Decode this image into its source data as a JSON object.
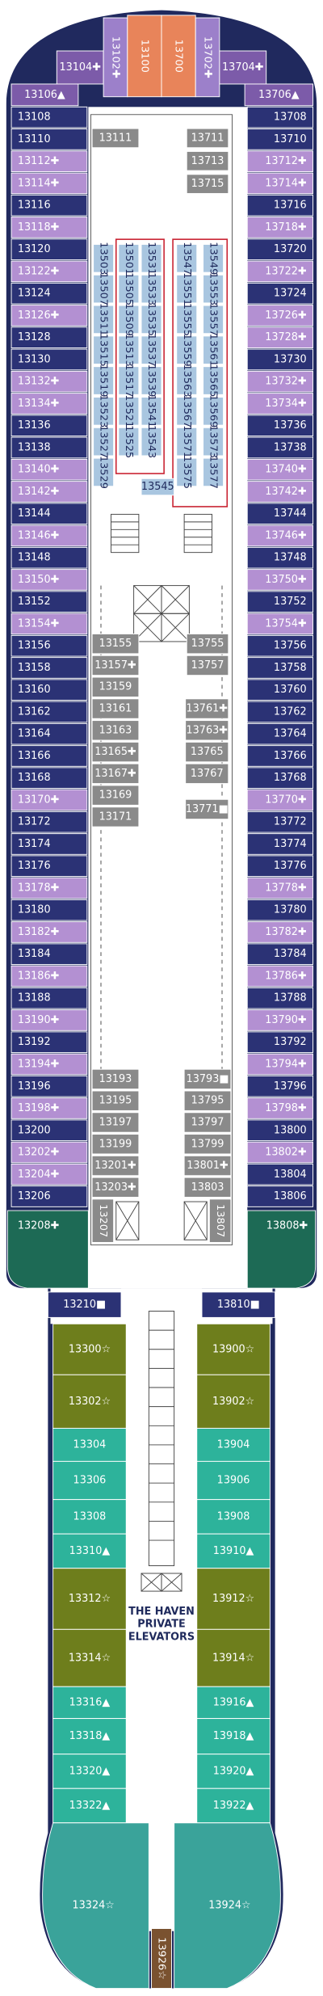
{
  "bow": [
    {
      "label": "13104✚",
      "color": "#7c5ba9"
    },
    {
      "label": "13102✚",
      "color": "#9c80ca"
    },
    {
      "label": "13100",
      "color": "#e8845a"
    },
    {
      "label": "13700",
      "color": "#e8845a"
    },
    {
      "label": "13702✚",
      "color": "#9c80ca"
    },
    {
      "label": "13704✚",
      "color": "#7c5ba9"
    }
  ],
  "bow_sides": [
    {
      "label": "13106▲",
      "color": "#7c5ba9"
    },
    {
      "label": "13706▲",
      "color": "#7c5ba9"
    }
  ],
  "port_cabins": [
    {
      "label": "13108",
      "color": "#2b3275"
    },
    {
      "label": "13110",
      "color": "#2b3275"
    },
    {
      "label": "13112✚",
      "color": "#b390d2"
    },
    {
      "label": "13114✚",
      "color": "#b390d2"
    },
    {
      "label": "13116",
      "color": "#2b3275"
    },
    {
      "label": "13118✚",
      "color": "#b390d2"
    },
    {
      "label": "13120",
      "color": "#2b3275"
    },
    {
      "label": "13122✚",
      "color": "#b390d2"
    },
    {
      "label": "13124",
      "color": "#2b3275"
    },
    {
      "label": "13126✚",
      "color": "#b390d2"
    },
    {
      "label": "13128",
      "color": "#2b3275"
    },
    {
      "label": "13130",
      "color": "#2b3275"
    },
    {
      "label": "13132✚",
      "color": "#b390d2"
    },
    {
      "label": "13134✚",
      "color": "#b390d2"
    },
    {
      "label": "13136",
      "color": "#2b3275"
    },
    {
      "label": "13138",
      "color": "#2b3275"
    },
    {
      "label": "13140✚",
      "color": "#b390d2"
    },
    {
      "label": "13142✚",
      "color": "#b390d2"
    },
    {
      "label": "13144",
      "color": "#2b3275"
    },
    {
      "label": "13146✚",
      "color": "#b390d2"
    },
    {
      "label": "13148",
      "color": "#2b3275"
    },
    {
      "label": "13150✚",
      "color": "#b390d2"
    },
    {
      "label": "13152",
      "color": "#2b3275"
    },
    {
      "label": "13154✚",
      "color": "#b390d2"
    },
    {
      "label": "13156",
      "color": "#2b3275"
    },
    {
      "label": "13158",
      "color": "#2b3275"
    },
    {
      "label": "13160",
      "color": "#2b3275"
    },
    {
      "label": "13162",
      "color": "#2b3275"
    },
    {
      "label": "13164",
      "color": "#2b3275"
    },
    {
      "label": "13166",
      "color": "#2b3275"
    },
    {
      "label": "13168",
      "color": "#2b3275"
    },
    {
      "label": "13170✚",
      "color": "#b390d2"
    },
    {
      "label": "13172",
      "color": "#2b3275"
    },
    {
      "label": "13174",
      "color": "#2b3275"
    },
    {
      "label": "13176",
      "color": "#2b3275"
    },
    {
      "label": "13178✚",
      "color": "#b390d2"
    },
    {
      "label": "13180",
      "color": "#2b3275"
    },
    {
      "label": "13182✚",
      "color": "#b390d2"
    },
    {
      "label": "13184",
      "color": "#2b3275"
    },
    {
      "label": "13186✚",
      "color": "#b390d2"
    },
    {
      "label": "13188",
      "color": "#2b3275"
    },
    {
      "label": "13190✚",
      "color": "#b390d2"
    },
    {
      "label": "13192",
      "color": "#2b3275"
    },
    {
      "label": "13194✚",
      "color": "#b390d2"
    },
    {
      "label": "13196",
      "color": "#2b3275"
    },
    {
      "label": "13198✚",
      "color": "#b390d2"
    },
    {
      "label": "13200",
      "color": "#2b3275"
    },
    {
      "label": "13202✚",
      "color": "#b390d2"
    },
    {
      "label": "13204✚",
      "color": "#b390d2"
    },
    {
      "label": "13206",
      "color": "#2b3275"
    }
  ],
  "starboard_cabins": [
    {
      "label": "13708",
      "color": "#2b3275"
    },
    {
      "label": "13710",
      "color": "#2b3275"
    },
    {
      "label": "13712✚",
      "color": "#b390d2"
    },
    {
      "label": "13714✚",
      "color": "#b390d2"
    },
    {
      "label": "13716",
      "color": "#2b3275"
    },
    {
      "label": "13718✚",
      "color": "#b390d2"
    },
    {
      "label": "13720",
      "color": "#2b3275"
    },
    {
      "label": "13722✚",
      "color": "#b390d2"
    },
    {
      "label": "13724",
      "color": "#2b3275"
    },
    {
      "label": "13726✚",
      "color": "#b390d2"
    },
    {
      "label": "13728✚",
      "color": "#b390d2"
    },
    {
      "label": "13730",
      "color": "#2b3275"
    },
    {
      "label": "13732✚",
      "color": "#b390d2"
    },
    {
      "label": "13734✚",
      "color": "#b390d2"
    },
    {
      "label": "13736",
      "color": "#2b3275"
    },
    {
      "label": "13738",
      "color": "#2b3275"
    },
    {
      "label": "13740✚",
      "color": "#b390d2"
    },
    {
      "label": "13742✚",
      "color": "#b390d2"
    },
    {
      "label": "13744",
      "color": "#2b3275"
    },
    {
      "label": "13746✚",
      "color": "#b390d2"
    },
    {
      "label": "13748",
      "color": "#2b3275"
    },
    {
      "label": "13750✚",
      "color": "#b390d2"
    },
    {
      "label": "13752",
      "color": "#2b3275"
    },
    {
      "label": "13754✚",
      "color": "#b390d2"
    },
    {
      "label": "13756",
      "color": "#2b3275"
    },
    {
      "label": "13758",
      "color": "#2b3275"
    },
    {
      "label": "13760",
      "color": "#2b3275"
    },
    {
      "label": "13762",
      "color": "#2b3275"
    },
    {
      "label": "13764",
      "color": "#2b3275"
    },
    {
      "label": "13766",
      "color": "#2b3275"
    },
    {
      "label": "13768",
      "color": "#2b3275"
    },
    {
      "label": "13770✚",
      "color": "#b390d2"
    },
    {
      "label": "13772",
      "color": "#2b3275"
    },
    {
      "label": "13774",
      "color": "#2b3275"
    },
    {
      "label": "13776",
      "color": "#2b3275"
    },
    {
      "label": "13778✚",
      "color": "#b390d2"
    },
    {
      "label": "13780",
      "color": "#2b3275"
    },
    {
      "label": "13782✚",
      "color": "#b390d2"
    },
    {
      "label": "13784",
      "color": "#2b3275"
    },
    {
      "label": "13786✚",
      "color": "#b390d2"
    },
    {
      "label": "13788",
      "color": "#2b3275"
    },
    {
      "label": "13790✚",
      "color": "#b390d2"
    },
    {
      "label": "13792",
      "color": "#2b3275"
    },
    {
      "label": "13794✚",
      "color": "#b390d2"
    },
    {
      "label": "13796",
      "color": "#2b3275"
    },
    {
      "label": "13798✚",
      "color": "#b390d2"
    },
    {
      "label": "13800",
      "color": "#2b3275"
    },
    {
      "label": "13802✚",
      "color": "#b390d2"
    },
    {
      "label": "13804",
      "color": "#2b3275"
    },
    {
      "label": "13806",
      "color": "#2b3275"
    }
  ],
  "corners": [
    {
      "label": "13208✚",
      "color": "#1d6a55"
    },
    {
      "label": "13808✚",
      "color": "#1d6a55"
    }
  ],
  "forward_port": [
    {
      "label": "13111",
      "color": "#8a8a8a"
    }
  ],
  "forward_starboard": [
    {
      "label": "13711",
      "color": "#8a8a8a"
    },
    {
      "label": "13713",
      "color": "#8a8a8a"
    },
    {
      "label": "13715",
      "color": "#8a8a8a"
    }
  ],
  "inside_columns": [
    [
      {
        "label": "13503",
        "color": "#a9c6e0"
      },
      {
        "label": "13507",
        "color": "#a9c6e0"
      },
      {
        "label": "13511",
        "color": "#a9c6e0"
      },
      {
        "label": "13515",
        "color": "#a9c6e0"
      },
      {
        "label": "13519",
        "color": "#a9c6e0"
      },
      {
        "label": "13523",
        "color": "#a9c6e0"
      },
      {
        "label": "13527",
        "color": "#a9c6e0"
      },
      {
        "label": "13529",
        "color": "#a9c6e0"
      }
    ],
    [
      {
        "label": "13501",
        "color": "#a9c6e0"
      },
      {
        "label": "13505",
        "color": "#a9c6e0"
      },
      {
        "label": "13509",
        "color": "#a9c6e0"
      },
      {
        "label": "13513",
        "color": "#a9c6e0"
      },
      {
        "label": "13517",
        "color": "#a9c6e0"
      },
      {
        "label": "13521",
        "color": "#a9c6e0"
      },
      {
        "label": "13525",
        "color": "#a9c6e0"
      }
    ],
    [
      {
        "label": "13531",
        "color": "#a9c6e0"
      },
      {
        "label": "13533",
        "color": "#a9c6e0"
      },
      {
        "label": "13535",
        "color": "#a9c6e0"
      },
      {
        "label": "13537",
        "color": "#a9c6e0"
      },
      {
        "label": "13539",
        "color": "#a9c6e0"
      },
      {
        "label": "13541",
        "color": "#a9c6e0"
      },
      {
        "label": "13543",
        "color": "#a9c6e0"
      }
    ],
    [
      {
        "label": "13547",
        "color": "#a9c6e0"
      },
      {
        "label": "13551",
        "color": "#a9c6e0"
      },
      {
        "label": "13555",
        "color": "#a9c6e0"
      },
      {
        "label": "13559",
        "color": "#a9c6e0"
      },
      {
        "label": "13563",
        "color": "#a9c6e0"
      },
      {
        "label": "13567",
        "color": "#a9c6e0"
      },
      {
        "label": "13571",
        "color": "#a9c6e0"
      },
      {
        "label": "13575",
        "color": "#a9c6e0"
      }
    ],
    [
      {
        "label": "13549",
        "color": "#a9c6e0"
      },
      {
        "label": "13553",
        "color": "#a9c6e0"
      },
      {
        "label": "13557",
        "color": "#a9c6e0"
      },
      {
        "label": "13561",
        "color": "#a9c6e0"
      },
      {
        "label": "13565",
        "color": "#a9c6e0"
      },
      {
        "label": "13569",
        "color": "#a9c6e0"
      },
      {
        "label": "13573",
        "color": "#a9c6e0"
      },
      {
        "label": "13577",
        "color": "#a9c6e0"
      }
    ]
  ],
  "inside_extra": [
    {
      "label": "13545",
      "color": "#a9c6e0"
    }
  ],
  "mid_port": [
    {
      "label": "13155",
      "color": "#8a8a8a"
    },
    {
      "label": "13157✚",
      "color": "#8a8a8a"
    },
    {
      "label": "13159",
      "color": "#8a8a8a"
    },
    {
      "label": "13161",
      "color": "#8a8a8a"
    },
    {
      "label": "13163",
      "color": "#8a8a8a"
    },
    {
      "label": "13165✚",
      "color": "#8a8a8a"
    },
    {
      "label": "13167✚",
      "color": "#8a8a8a"
    },
    {
      "label": "13169",
      "color": "#8a8a8a"
    },
    {
      "label": "13171",
      "color": "#8a8a8a"
    }
  ],
  "mid_starboard": [
    {
      "label": "13755",
      "color": "#8a8a8a"
    },
    {
      "label": "13757",
      "color": "#8a8a8a"
    },
    {
      "label": "13761✚",
      "color": "#8a8a8a"
    },
    {
      "label": "13763✚",
      "color": "#8a8a8a"
    },
    {
      "label": "13765",
      "color": "#8a8a8a"
    },
    {
      "label": "13767",
      "color": "#8a8a8a"
    },
    {
      "label": "13771■",
      "color": "#8a8a8a"
    }
  ],
  "aft_port": [
    {
      "label": "13193",
      "color": "#8a8a8a"
    },
    {
      "label": "13195",
      "color": "#8a8a8a"
    },
    {
      "label": "13197",
      "color": "#8a8a8a"
    },
    {
      "label": "13199",
      "color": "#8a8a8a"
    },
    {
      "label": "13201✚",
      "color": "#8a8a8a"
    },
    {
      "label": "13203✚",
      "color": "#8a8a8a"
    },
    {
      "label": "13207",
      "color": "#8a8a8a"
    }
  ],
  "aft_starboard": [
    {
      "label": "13793■",
      "color": "#8a8a8a"
    },
    {
      "label": "13795",
      "color": "#8a8a8a"
    },
    {
      "label": "13797",
      "color": "#8a8a8a"
    },
    {
      "label": "13799",
      "color": "#8a8a8a"
    },
    {
      "label": "13801✚",
      "color": "#8a8a8a"
    },
    {
      "label": "13803",
      "color": "#8a8a8a"
    },
    {
      "label": "13807",
      "color": "#8a8a8a"
    }
  ],
  "aft_sides": [
    {
      "label": "13210■",
      "color": "#2b3275"
    },
    {
      "label": "13810■",
      "color": "#2b3275"
    }
  ],
  "haven_port": [
    {
      "label": "13300☆",
      "color": "#6e7e1c"
    },
    {
      "label": "13302☆",
      "color": "#6e7e1c"
    },
    {
      "label": "13304",
      "color": "#2db39b"
    },
    {
      "label": "13306",
      "color": "#2db39b"
    },
    {
      "label": "13308",
      "color": "#2db39b"
    },
    {
      "label": "13310▲",
      "color": "#2db39b"
    },
    {
      "label": "13312☆",
      "color": "#6e7e1c"
    },
    {
      "label": "13314☆",
      "color": "#6e7e1c"
    },
    {
      "label": "13316▲",
      "color": "#2db39b"
    },
    {
      "label": "13318▲",
      "color": "#2db39b"
    },
    {
      "label": "13320▲",
      "color": "#2db39b"
    },
    {
      "label": "13322▲",
      "color": "#2db39b"
    }
  ],
  "haven_starboard": [
    {
      "label": "13900☆",
      "color": "#6e7e1c"
    },
    {
      "label": "13902☆",
      "color": "#6e7e1c"
    },
    {
      "label": "13904",
      "color": "#2db39b"
    },
    {
      "label": "13906",
      "color": "#2db39b"
    },
    {
      "label": "13908",
      "color": "#2db39b"
    },
    {
      "label": "13910▲",
      "color": "#2db39b"
    },
    {
      "label": "13912☆",
      "color": "#6e7e1c"
    },
    {
      "label": "13914☆",
      "color": "#6e7e1c"
    },
    {
      "label": "13916▲",
      "color": "#2db39b"
    },
    {
      "label": "13918▲",
      "color": "#2db39b"
    },
    {
      "label": "13920▲",
      "color": "#2db39b"
    },
    {
      "label": "13922▲",
      "color": "#2db39b"
    }
  ],
  "stern": [
    {
      "label": "13324☆",
      "color": "#3aa39a"
    },
    {
      "label": "13924☆",
      "color": "#3aa39a"
    }
  ],
  "stern_center": [
    {
      "label": "13926☆",
      "color": "#7a5230"
    }
  ],
  "haven_elevators_label": [
    "THE HAVEN",
    "PRIVATE",
    "ELEVATORS"
  ]
}
